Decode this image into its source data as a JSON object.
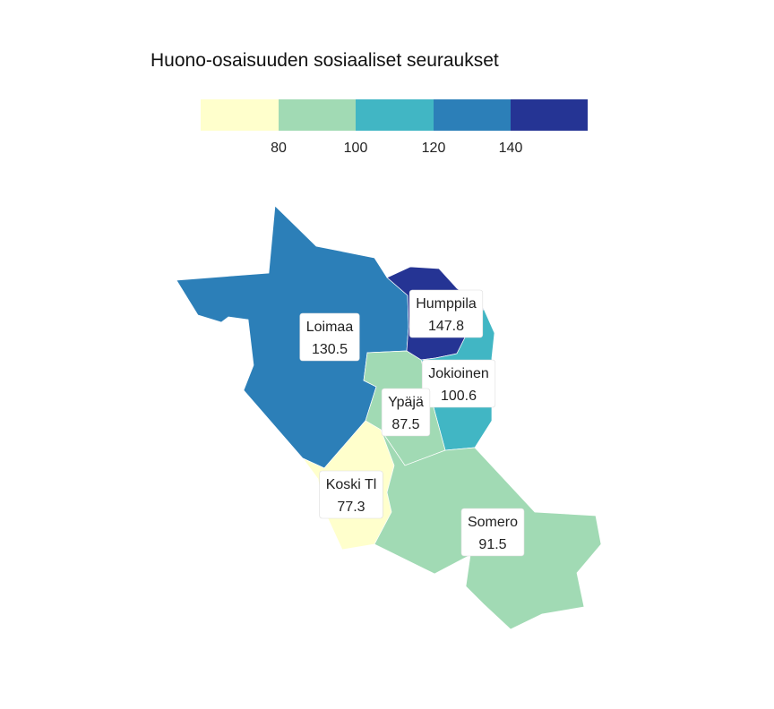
{
  "title": "Huono-osaisuuden sosiaaliset seuraukset",
  "legend": {
    "ticks": [
      "80",
      "100",
      "120",
      "140"
    ],
    "bins": [
      {
        "color": "#ffffcc"
      },
      {
        "color": "#a1dab4"
      },
      {
        "color": "#41b6c4"
      },
      {
        "color": "#2c7fb8"
      },
      {
        "color": "#253494"
      }
    ]
  },
  "regions": [
    {
      "id": "loimaa",
      "name": "Loimaa",
      "value": "130.5",
      "color": "#2c7fb8"
    },
    {
      "id": "humppila",
      "name": "Humppila",
      "value": "147.8",
      "color": "#253494"
    },
    {
      "id": "jokioinen",
      "name": "Jokioinen",
      "value": "100.6",
      "color": "#41b6c4"
    },
    {
      "id": "ypaja",
      "name": "Ypäjä",
      "value": "87.5",
      "color": "#a1dab4"
    },
    {
      "id": "koski",
      "name": "Koski Tl",
      "value": "77.3",
      "color": "#ffffcc"
    },
    {
      "id": "somero",
      "name": "Somero",
      "value": "91.5",
      "color": "#a1dab4"
    }
  ]
}
